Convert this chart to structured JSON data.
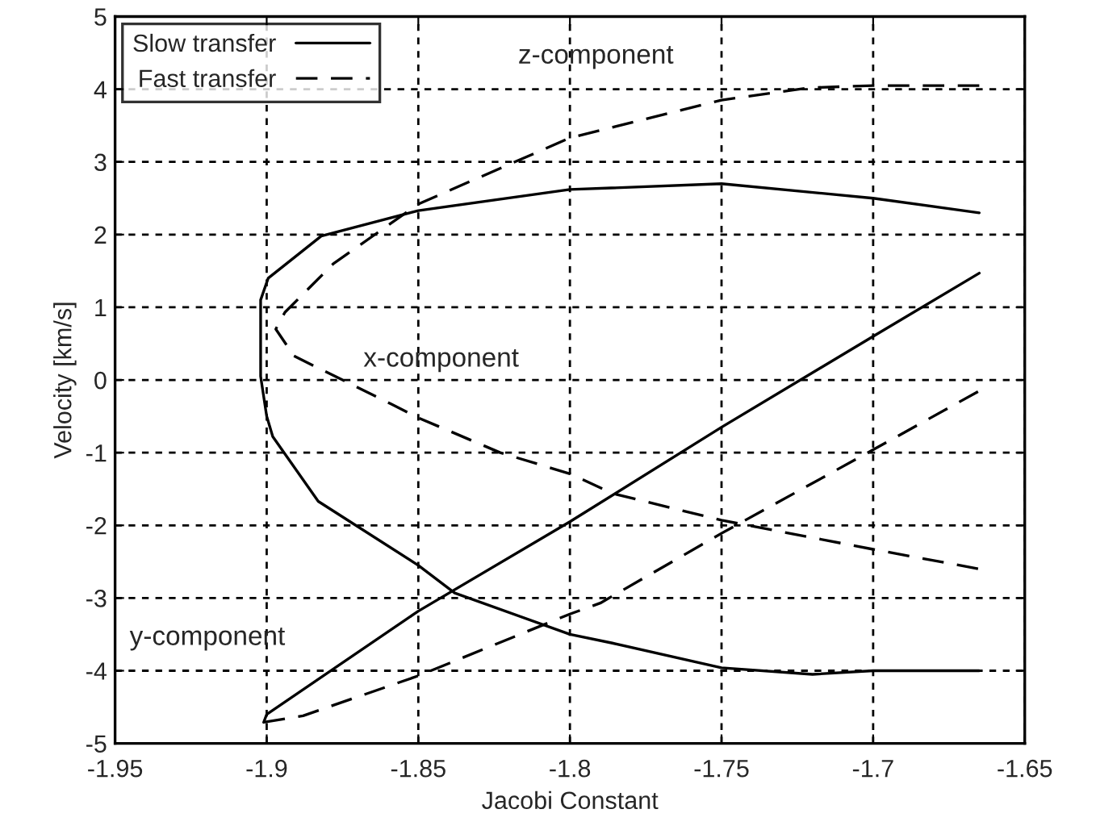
{
  "chart_data": {
    "type": "line",
    "xlabel": "Jacobi Constant",
    "ylabel": "Velocity [km/s]",
    "xlim": [
      -1.95,
      -1.65
    ],
    "xticks": [
      -1.95,
      -1.9,
      -1.85,
      -1.8,
      -1.75,
      -1.7,
      -1.65
    ],
    "ylim": [
      -5,
      5
    ],
    "yticks": [
      -5,
      -4,
      -3,
      -2,
      -1,
      0,
      1,
      2,
      3,
      4,
      5
    ],
    "grid": true,
    "legend": "top left",
    "marker": "none",
    "series": [
      {
        "name": "Slow transfer",
        "color": "#000000",
        "line_style": "solid",
        "x": [
          -1.665,
          -1.7,
          -1.75,
          -1.8,
          -1.85,
          -1.882,
          -1.8995,
          -1.902,
          -1.902,
          -1.9,
          -1.898,
          -1.883,
          -1.85,
          -1.838,
          -1.8,
          -1.786,
          -1.75,
          -1.72,
          -1.7,
          -1.665
        ],
        "values": [
          2.3,
          2.5,
          2.7,
          2.62,
          2.33,
          1.98,
          1.4,
          1.1,
          0.05,
          -0.5,
          -0.78,
          -1.67,
          -2.55,
          -2.93,
          -3.5,
          -3.62,
          -3.96,
          -4.05,
          -4.0,
          -4.0
        ]
      },
      {
        "color": "#000000",
        "line_style": "solid",
        "x": [
          -1.901,
          -1.9,
          -1.85,
          -1.8,
          -1.75,
          -1.7,
          -1.665
        ],
        "values": [
          -4.71,
          -4.6,
          -3.18,
          -1.95,
          -0.65,
          0.6,
          1.47
        ]
      },
      {
        "name": "Fast transfer",
        "color": "#000000",
        "line_style": "dashed",
        "x": [
          -1.665,
          -1.7,
          -1.721,
          -1.75,
          -1.8,
          -1.85,
          -1.878,
          -1.894,
          -1.897,
          -1.891,
          -1.859,
          -1.85,
          -1.823,
          -1.8,
          -1.786,
          -1.75,
          -1.7,
          -1.665
        ],
        "values": [
          4.05,
          4.05,
          4.02,
          3.85,
          3.33,
          2.42,
          1.6,
          0.93,
          0.7,
          0.33,
          -0.33,
          -0.52,
          -1.0,
          -1.29,
          -1.56,
          -1.93,
          -2.33,
          -2.6
        ]
      },
      {
        "color": "#000000",
        "line_style": "dashed",
        "x": [
          -1.901,
          -1.888,
          -1.85,
          -1.8,
          -1.79,
          -1.75,
          -1.7,
          -1.665
        ],
        "values": [
          -4.71,
          -4.62,
          -4.07,
          -3.22,
          -3.07,
          -2.11,
          -0.96,
          -0.15
        ]
      }
    ],
    "annotations": [
      "z-component",
      "x-component",
      "y-component"
    ]
  }
}
